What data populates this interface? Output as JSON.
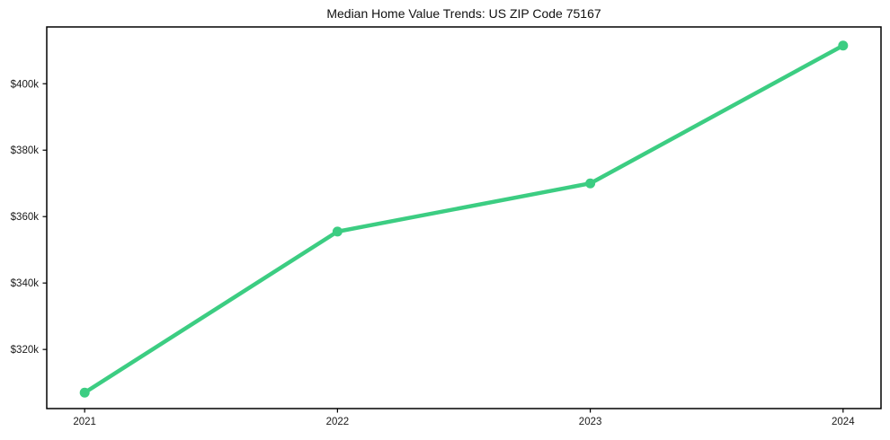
{
  "chart_data": {
    "type": "line",
    "title": "Median Home Value Trends: US ZIP Code 75167",
    "x": [
      2021,
      2022,
      2023,
      2024
    ],
    "x_tick_labels": [
      "2021",
      "2022",
      "2023",
      "2024"
    ],
    "values": [
      307000,
      355500,
      370000,
      411500
    ],
    "y_ticks": [
      320000,
      340000,
      360000,
      380000,
      400000
    ],
    "y_tick_labels": [
      "$320k",
      "$340k",
      "$360k",
      "$380k",
      "$400k"
    ],
    "xlabel": "",
    "ylabel": "",
    "xlim": [
      2020.85,
      2024.15
    ],
    "ylim": [
      302200,
      417100
    ],
    "grid": false,
    "legend_visible": false,
    "line_color": "#3ccd82",
    "marker": "circle",
    "background_color": "#ffffff",
    "text_color": "#1a1a1a",
    "spine_color": "#000000"
  }
}
